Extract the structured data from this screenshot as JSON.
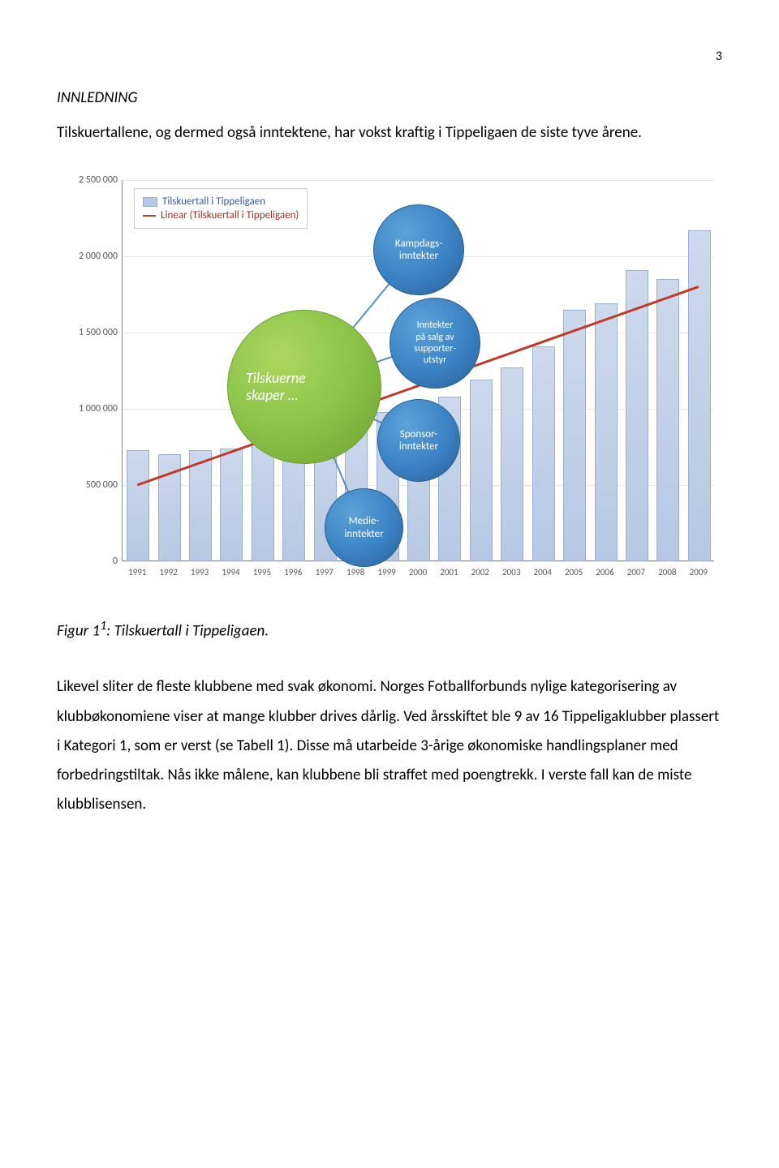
{
  "page_number": "3",
  "heading": "INNLEDNING",
  "intro_paragraph": "Tilskuertallene, og dermed også inntektene, har vokst kraftig i Tippeligaen de siste tyve årene.",
  "figure_caption_prefix": "Figur 1",
  "figure_caption_sup": "1",
  "figure_caption_suffix": ": Tilskuertall i Tippeligaen.",
  "body_paragraph": "Likevel sliter de fleste klubbene med svak økonomi. Norges Fotballforbunds nylige kategorisering av klubbøkonomiene viser at mange klubber drives dårlig. Ved årsskiftet ble 9 av 16 Tippeligaklubber plassert i Kategori 1, som er verst (se Tabell 1). Disse må utarbeide 3-årige økonomiske handlingsplaner med forbedringstiltak. Nås ikke målene, kan klubbene bli straffet med poengtrekk. I verste fall kan de miste klubblisensen.",
  "chart": {
    "type": "bar",
    "legend": {
      "series1": "Tilskuertall i Tippeligaen",
      "series2": "Linear (Tilskuertall i Tippeligaen)"
    },
    "y_ticks": [
      0,
      500000,
      1000000,
      1500000,
      2000000,
      2500000
    ],
    "y_tick_labels": [
      "0",
      "500 000",
      "1 000 000",
      "1 500 000",
      "2 000 000",
      "2 500 000"
    ],
    "ylim": [
      0,
      2500000
    ],
    "years": [
      "1991",
      "1992",
      "1993",
      "1994",
      "1995",
      "1996",
      "1997",
      "1998",
      "1999",
      "2000",
      "2001",
      "2002",
      "2003",
      "2004",
      "2005",
      "2006",
      "2007",
      "2008",
      "2009"
    ],
    "values": [
      720000,
      690000,
      720000,
      730000,
      920000,
      900000,
      870000,
      940000,
      970000,
      940000,
      1070000,
      1180000,
      1260000,
      1400000,
      1640000,
      1680000,
      1900000,
      1840000,
      2160000
    ],
    "bar_color": "#b6c8e3",
    "bar_border": "#9ab0d0",
    "trend_color": "#c0392b",
    "trend_start": 500000,
    "trend_end": 1800000,
    "grid_color": "#e8e8e8",
    "background_color": "#ffffff",
    "label_color": "#555555",
    "label_fontsize": 12
  },
  "bubbles": {
    "center": {
      "label": "Tilskuerne\nskaper …",
      "color": "green"
    },
    "b1": {
      "label": "Kampdags-\ninntekter",
      "color": "blue"
    },
    "b2": {
      "label": "Inntekter\npå salg av\nsupporter-\nutstyr",
      "color": "blue"
    },
    "b3": {
      "label": "Sponsor-\ninntekter",
      "color": "blue"
    },
    "b4": {
      "label": "Medie-\ninntekter",
      "color": "blue"
    }
  }
}
